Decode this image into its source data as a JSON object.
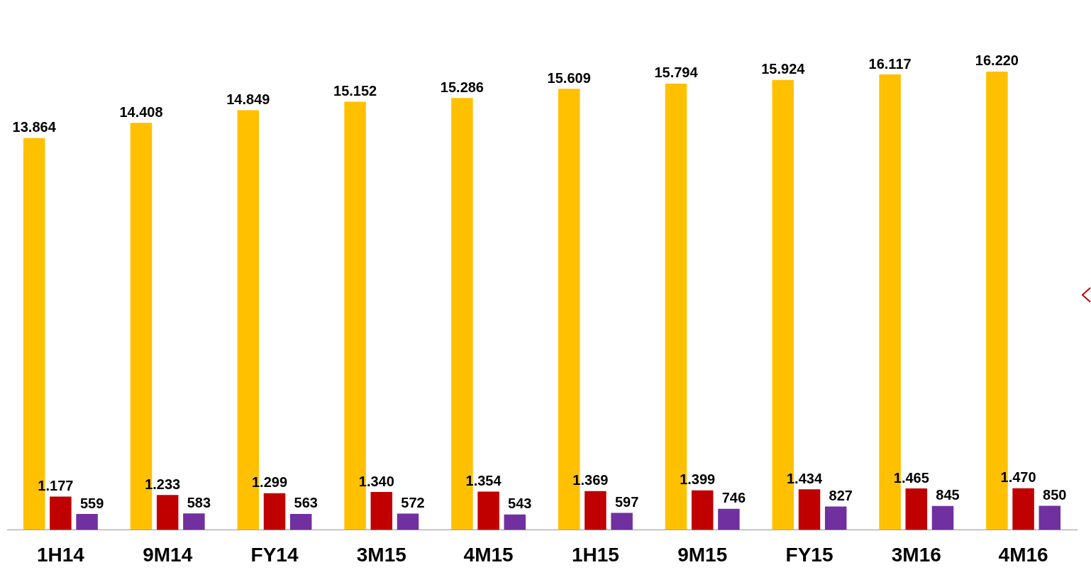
{
  "chart_data": {
    "type": "bar",
    "categories": [
      "1H14",
      "9M14",
      "FY14",
      "3M15",
      "4M15",
      "1H15",
      "9M15",
      "FY15",
      "3M16",
      "4M16"
    ],
    "series": [
      {
        "color": "#ffc000",
        "values": [
          13864,
          14408,
          14849,
          15152,
          15286,
          15609,
          15794,
          15924,
          16117,
          16220
        ],
        "value_labels": [
          "13.864",
          "14.408",
          "14.849",
          "15.152",
          "15.286",
          "15.609",
          "15.794",
          "15.924",
          "16.117",
          "16.220"
        ]
      },
      {
        "color": "#c00000",
        "values": [
          1177,
          1233,
          1299,
          1340,
          1354,
          1369,
          1399,
          1434,
          1465,
          1470
        ],
        "value_labels": [
          "1.177",
          "1.233",
          "1.299",
          "1.340",
          "1.354",
          "1.369",
          "1.399",
          "1.434",
          "1.465",
          "1.470"
        ]
      },
      {
        "color": "#7030a0",
        "values": [
          559,
          583,
          563,
          572,
          543,
          597,
          746,
          827,
          845,
          850
        ],
        "value_labels": [
          "559",
          "583",
          "563",
          "572",
          "543",
          "597",
          "746",
          "827",
          "845",
          "850"
        ]
      }
    ],
    "grid": false,
    "legend": false
  }
}
